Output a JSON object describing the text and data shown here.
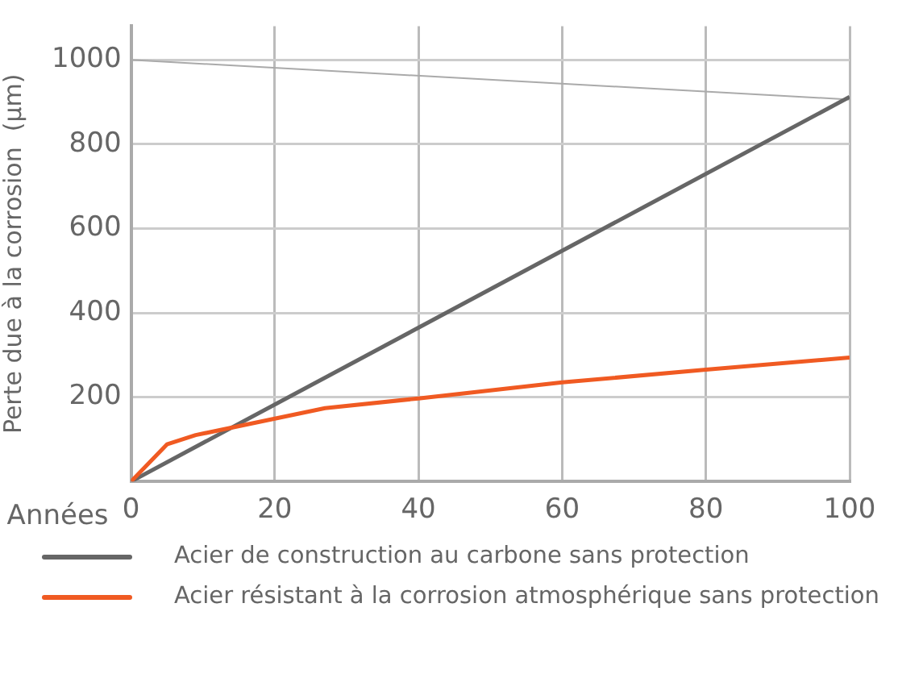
{
  "chart_data": {
    "type": "line",
    "xlabel": "Années",
    "ylabel": "Perte due à la corrosion  (µm)",
    "xlim": [
      0,
      100
    ],
    "xticks": [
      0,
      20,
      40,
      60,
      80,
      100
    ],
    "ylim": [
      0,
      1080
    ],
    "yticks": [
      200,
      400,
      600,
      800,
      1000
    ],
    "grid": true,
    "legend": "bottom",
    "marker": "none",
    "line_style": "solid",
    "series": [
      {
        "color": "#aaaaaa",
        "x": [
          0,
          100
        ],
        "values": [
          1000,
          906
        ]
      },
      {
        "name": "Acier de construction au carbone sans protection",
        "color": "#666666",
        "x": [
          0,
          100
        ],
        "values": [
          0,
          912
        ]
      },
      {
        "name": "Acier résistant à la corrosion atmosphérique sans protection",
        "color": "#f05a22",
        "x": [
          0,
          5,
          9,
          27,
          40,
          60,
          80,
          100
        ],
        "values": [
          0,
          88,
          110,
          174,
          197,
          235,
          265,
          294
        ]
      }
    ]
  }
}
